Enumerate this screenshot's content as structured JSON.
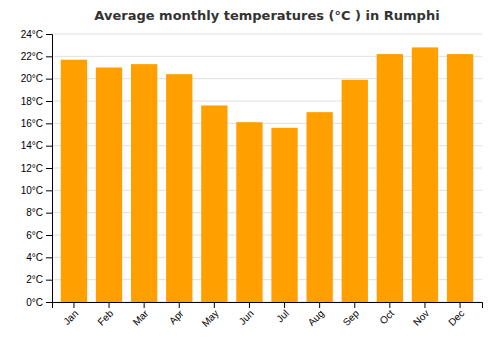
{
  "chart_data": {
    "type": "bar",
    "title": "Average monthly temperatures (°C ) in Rumphi",
    "categories": [
      "Jan",
      "Feb",
      "Mar",
      "Apr",
      "May",
      "Jun",
      "Jul",
      "Aug",
      "Sep",
      "Oct",
      "Nov",
      "Dec"
    ],
    "values": [
      21.7,
      21.0,
      21.3,
      20.4,
      17.6,
      16.1,
      15.6,
      17.0,
      19.9,
      22.2,
      22.8,
      22.2
    ],
    "color": "#FFA000",
    "ylim": [
      0,
      24
    ],
    "yticks": [
      {
        "value": 0,
        "label": "0°C"
      },
      {
        "value": 2,
        "label": "2°C"
      },
      {
        "value": 4,
        "label": "4°C"
      },
      {
        "value": 6,
        "label": "6°C"
      },
      {
        "value": 8,
        "label": "8°C"
      },
      {
        "value": 10,
        "label": "10°C"
      },
      {
        "value": 12,
        "label": "12°C"
      },
      {
        "value": 14,
        "label": "14°C"
      },
      {
        "value": 16,
        "label": "16°C"
      },
      {
        "value": 18,
        "label": "18°C"
      },
      {
        "value": 20,
        "label": "20°C"
      },
      {
        "value": 22,
        "label": "22°C"
      },
      {
        "value": 24,
        "label": "24°C"
      }
    ],
    "grid": true
  }
}
